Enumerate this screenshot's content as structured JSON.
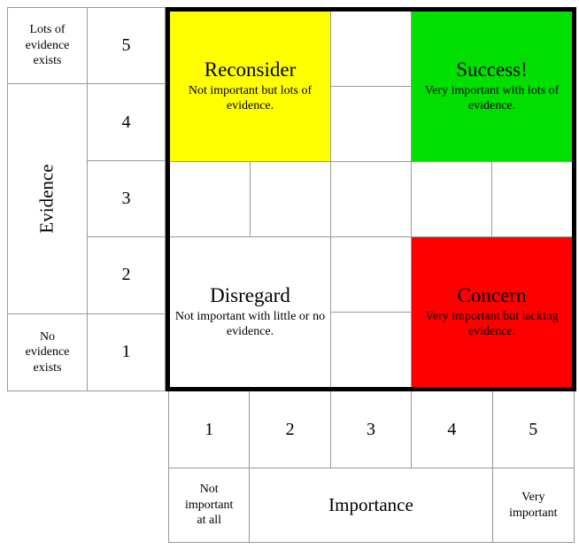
{
  "colors": {
    "reconsider": "#FFFF00",
    "success": "#00DF00",
    "concern": "#FE0000",
    "disregard": "#FFFFFF",
    "grid_line": "#999999",
    "border": "#000000"
  },
  "evidence_axis": {
    "title": "Evidence",
    "high_label": "Lots of\nevidence\nexists",
    "low_label": "No\nevidence\nexists",
    "scale": [
      "5",
      "4",
      "3",
      "2",
      "1"
    ]
  },
  "importance_axis": {
    "title": "Importance",
    "low_label": "Not\nimportant\nat all",
    "high_label": "Very\nimportant",
    "scale": [
      "1",
      "2",
      "3",
      "4",
      "5"
    ]
  },
  "quadrants": {
    "reconsider": {
      "title": "Reconsider",
      "description": "Not important but lots of\nevidence."
    },
    "success": {
      "title": "Success!",
      "description": "Very important with lots of\nevidence."
    },
    "disregard": {
      "title": "Disregard",
      "description": "Not important with little or no\nevidence."
    },
    "concern": {
      "title": "Concern",
      "description": "Very important but lacking\nevidence."
    }
  }
}
